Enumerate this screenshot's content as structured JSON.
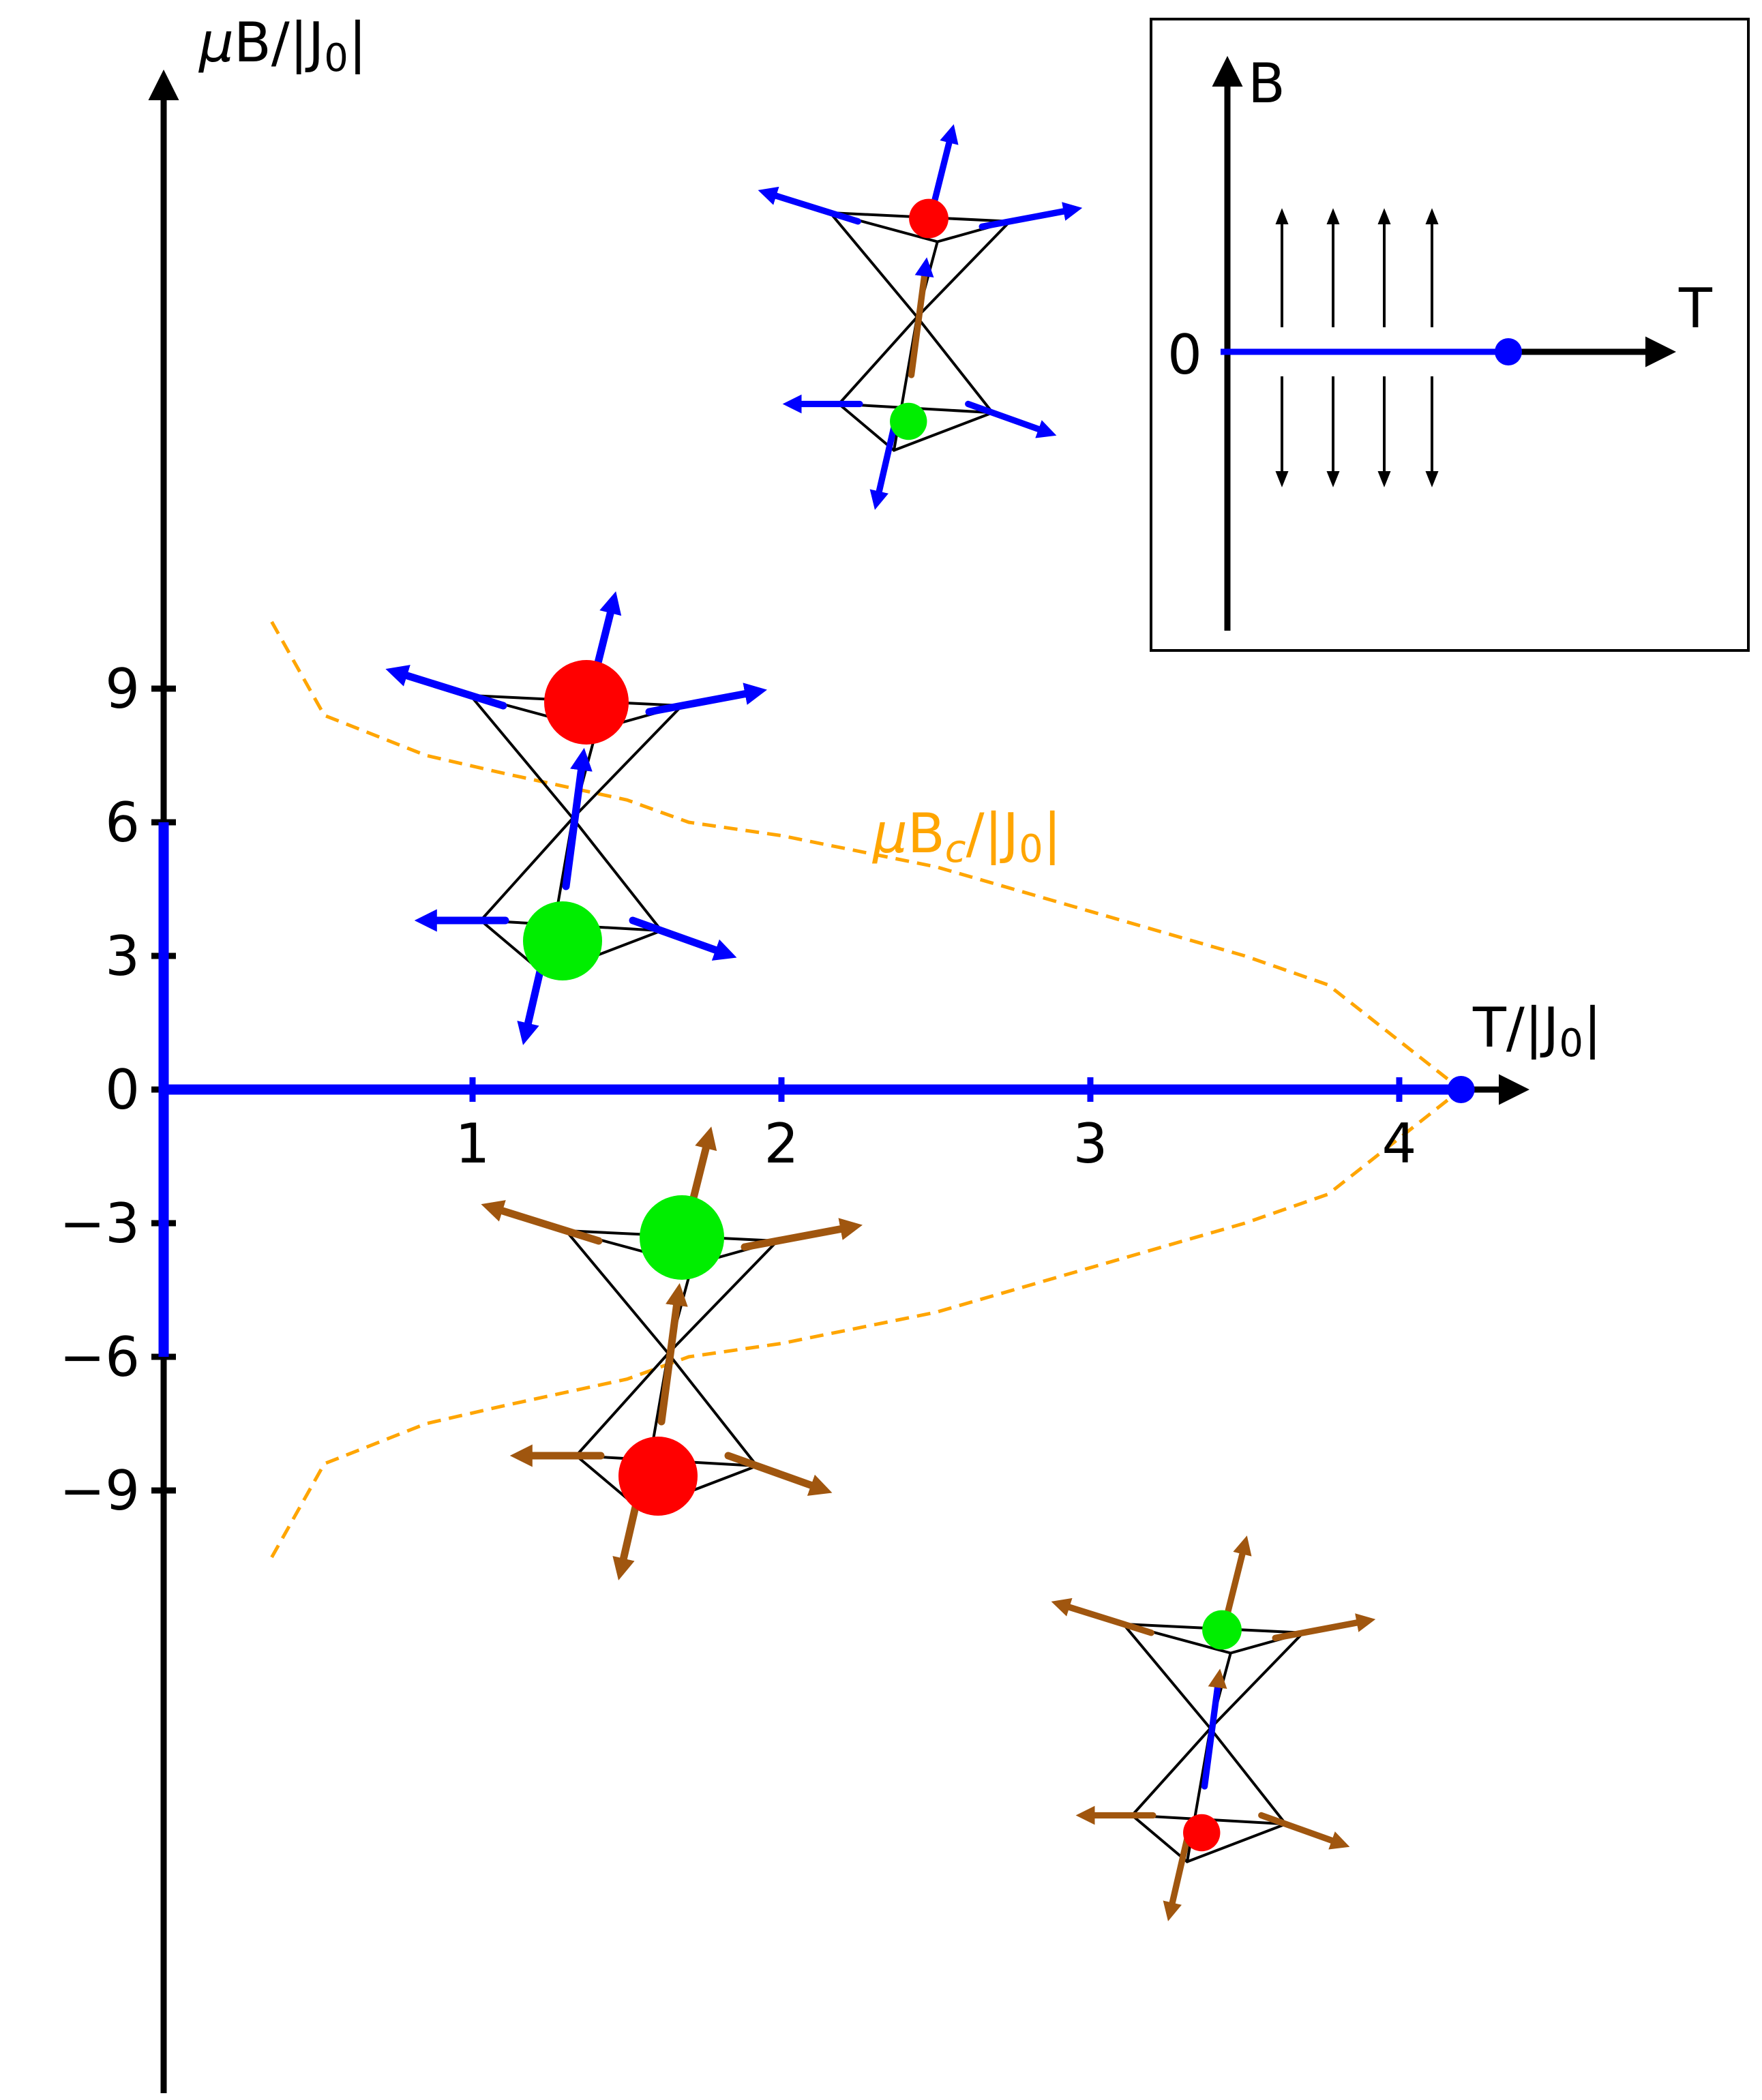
{
  "chart_data": {
    "type": "line",
    "xlabel": "T/|J",
    "xlabel_sub": "0",
    "xlabel_end": "|",
    "ylabel_mu": "μ",
    "ylabel": "B/|J",
    "ylabel_sub": "0",
    "ylabel_end": "|",
    "xlim": [
      0,
      4.6
    ],
    "ylim": [
      -12.0,
      11.3
    ],
    "x_ticks": [
      1,
      2,
      3,
      4
    ],
    "x_tick_labels": [
      "1",
      "2",
      "3",
      "4"
    ],
    "y_ticks": [
      9,
      6,
      3,
      0,
      -3,
      -6,
      -9
    ],
    "y_tick_labels": [
      "9",
      "6",
      "3",
      "0",
      "−3",
      "−6",
      "−9"
    ],
    "colors": {
      "phase": "#0000ff",
      "critical": "#ffa500",
      "up_spin": "#0000ff",
      "down_spin": "#a0560f",
      "red_site": "#ff0000",
      "green_site": "#00ee00"
    },
    "phase_lines": [
      {
        "name": "B = 0 line",
        "x": [
          0,
          4.2
        ],
        "y": [
          0,
          0
        ]
      },
      {
        "name": "T = 0 segment",
        "x": [
          0,
          0
        ],
        "y": [
          -6,
          6
        ]
      }
    ],
    "critical_point": {
      "x": 4.2,
      "y": 0
    },
    "series": [
      {
        "name": "μB_c/|J_0|",
        "label_mu": "μ",
        "label_main": "B",
        "label_sub": "c",
        "label_rest": "/|J",
        "label_sub2": "0",
        "label_end": "|",
        "style": "dashed",
        "x": [
          0.35,
          0.52,
          0.85,
          1.1,
          1.5,
          1.7,
          2.0,
          2.5,
          3.0,
          3.5,
          3.77,
          4.2
        ],
        "y": [
          10.5,
          8.4,
          7.5,
          7.1,
          6.5,
          6.0,
          5.7,
          5.0,
          4.0,
          3.0,
          2.35,
          0.0
        ],
        "mirror_negative": true
      }
    ]
  },
  "inset": {
    "b_label": "B",
    "t_label": "T",
    "zero_label": "0",
    "colors": {
      "axis": "#000000",
      "line": "#0000ff",
      "arrows": "#000000"
    }
  }
}
